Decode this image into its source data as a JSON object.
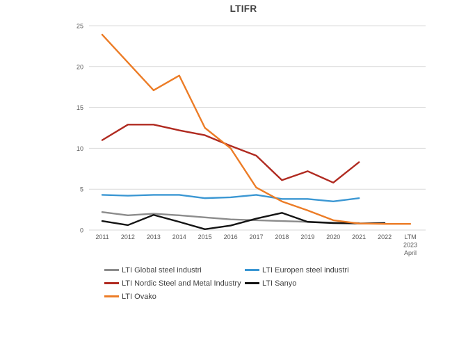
{
  "title": "LTIFR",
  "chart_data": {
    "type": "line",
    "title": "LTIFR",
    "categories": [
      "2011",
      "2012",
      "2013",
      "2014",
      "2015",
      "2016",
      "2017",
      "2018",
      "2019",
      "2020",
      "2021",
      "2022",
      "LTM\n2023\nApril"
    ],
    "series": [
      {
        "name": "LTI Global steel industri",
        "color": "#8c8c8c",
        "values": [
          2.2,
          1.8,
          2.0,
          1.8,
          1.55,
          1.3,
          1.2,
          1.1,
          1.0,
          0.9,
          0.85,
          null,
          null
        ]
      },
      {
        "name": "LTI Europen steel industri",
        "color": "#3b97d3",
        "values": [
          4.3,
          4.2,
          4.3,
          4.3,
          3.9,
          4.0,
          4.3,
          3.8,
          3.8,
          3.5,
          3.9,
          null,
          null
        ]
      },
      {
        "name": "LTI Nordic Steel and Metal Industry",
        "color": "#b02a20",
        "values": [
          11.0,
          12.9,
          12.9,
          12.2,
          11.6,
          10.3,
          9.1,
          6.1,
          7.2,
          5.8,
          8.3,
          null,
          null
        ]
      },
      {
        "name": "LTI Sanyo",
        "color": "#141414",
        "values": [
          1.1,
          0.6,
          1.85,
          1.0,
          0.1,
          0.55,
          1.4,
          2.1,
          1.0,
          0.85,
          0.8,
          0.85,
          null
        ]
      },
      {
        "name": "LTI Ovako",
        "color": "#ec7c26",
        "values": [
          23.9,
          20.5,
          17.1,
          18.9,
          12.5,
          10.0,
          5.2,
          3.5,
          2.4,
          1.2,
          0.8,
          0.75,
          0.75
        ]
      }
    ],
    "xlabel": "",
    "ylabel": "",
    "ylim": [
      0,
      25
    ],
    "yticks": [
      0,
      5,
      10,
      15,
      20,
      25
    ],
    "grid": "horizontal-only",
    "legend_position": "bottom",
    "gridline_color": "#d9d9d9",
    "tick_label_color": "#595959",
    "title_color": "#3f3f3f"
  }
}
